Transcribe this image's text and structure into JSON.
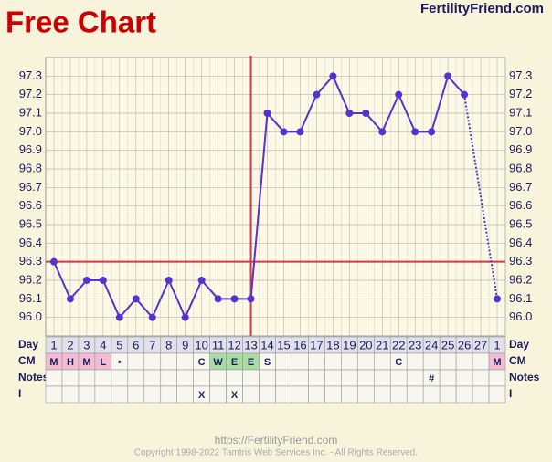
{
  "chart_data": {
    "type": "line",
    "title": "Free Chart",
    "brand": "FertilityFriend.com",
    "footer_url": "https://FertilityFriend.com",
    "footer_copyright": "Copyright 1998-2022 Tamtris Web Services Inc. - All Rights Reserved.",
    "day_label": "Day",
    "categories": [
      "1",
      "2",
      "3",
      "4",
      "5",
      "6",
      "7",
      "8",
      "9",
      "10",
      "11",
      "12",
      "13",
      "14",
      "15",
      "16",
      "17",
      "18",
      "19",
      "20",
      "21",
      "22",
      "23",
      "24",
      "25",
      "26",
      "27",
      "1"
    ],
    "series": [
      {
        "color": "#5533cc",
        "values": [
          96.3,
          96.1,
          96.2,
          96.2,
          96.0,
          96.1,
          96.0,
          96.2,
          96.0,
          96.2,
          96.1,
          96.1,
          96.1,
          97.1,
          97.0,
          97.0,
          97.2,
          97.3,
          97.1,
          97.1,
          97.0,
          97.2,
          97.0,
          97.0,
          97.3,
          97.2,
          null,
          96.1
        ]
      }
    ],
    "ylim": [
      95.9,
      97.4
    ],
    "yticks": [
      {
        "value": 96,
        "label": "96.0"
      },
      96.1,
      96.2,
      96.3,
      96.4,
      96.5,
      96.6,
      96.7,
      96.8,
      96.9,
      {
        "value": 97,
        "label": "97.0"
      },
      97.1,
      97.2,
      97.3
    ],
    "grid": true,
    "coverline": 96.3,
    "ovulation_day": "13",
    "marker_color": "#dd3344",
    "rows": [
      {
        "label": "CM",
        "cells": [
          "M",
          "H",
          "M",
          "L",
          "•",
          null,
          null,
          null,
          null,
          "C",
          "W",
          "E",
          "E",
          "S",
          null,
          null,
          null,
          null,
          null,
          null,
          null,
          "C",
          null,
          null,
          null,
          null,
          null,
          "M"
        ]
      },
      {
        "label": "Notes",
        "cells": [
          null,
          null,
          null,
          null,
          null,
          null,
          null,
          null,
          null,
          null,
          null,
          null,
          null,
          null,
          null,
          null,
          null,
          null,
          null,
          null,
          null,
          null,
          null,
          "#",
          null,
          null,
          null,
          null
        ]
      },
      {
        "label": "I",
        "cells": [
          null,
          null,
          null,
          null,
          null,
          null,
          null,
          null,
          null,
          "X",
          null,
          "X",
          null,
          null,
          null,
          null,
          null,
          null,
          null,
          null,
          null,
          null,
          null,
          null,
          null,
          null,
          null,
          null
        ]
      }
    ],
    "cell_fill": {
      "M": "#f3bcd3",
      "H": "#f3bcd3",
      "L": "#f3bcd3",
      "W": "#a8dca0",
      "E": "#a8dca0"
    }
  }
}
